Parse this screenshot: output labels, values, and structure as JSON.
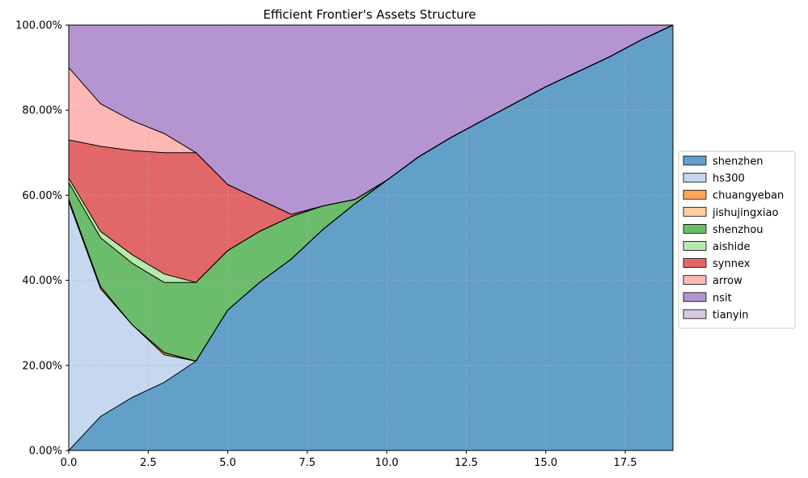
{
  "chart_data": {
    "type": "area",
    "stacked": true,
    "normalized": true,
    "title": "Efficient Frontier's Assets Structure",
    "xlabel": "",
    "ylabel": "",
    "xlim": [
      0,
      19
    ],
    "ylim": [
      0,
      1
    ],
    "x_ticks": [
      0,
      2.5,
      5,
      7.5,
      10,
      12.5,
      15,
      17.5
    ],
    "x_tick_labels": [
      "0.0",
      "2.5",
      "5.0",
      "7.5",
      "10.0",
      "12.5",
      "15.0",
      "17.5"
    ],
    "y_ticks": [
      0,
      0.2,
      0.4,
      0.6,
      0.8,
      1.0
    ],
    "y_tick_labels": [
      "0.00%",
      "20.00%",
      "40.00%",
      "60.00%",
      "80.00%",
      "100.00%"
    ],
    "grid": true,
    "legend_position": "right",
    "x": [
      0,
      1,
      2,
      3,
      4,
      5,
      6,
      7,
      8,
      9,
      10,
      11,
      12,
      13,
      14,
      15,
      16,
      17,
      18,
      19
    ],
    "series": [
      {
        "name": "shenzhen",
        "color": "#1f77b4",
        "values": [
          0.0,
          0.08,
          0.125,
          0.16,
          0.21,
          0.33,
          0.395,
          0.45,
          0.52,
          0.58,
          0.635,
          0.69,
          0.735,
          0.775,
          0.815,
          0.855,
          0.89,
          0.925,
          0.965,
          1.0
        ]
      },
      {
        "name": "hs300",
        "color": "#aec7e8",
        "values": [
          0.585,
          0.3,
          0.17,
          0.065,
          0.0,
          0.0,
          0.0,
          0.0,
          0.0,
          0.0,
          0.0,
          0.0,
          0.0,
          0.0,
          0.0,
          0.0,
          0.0,
          0.0,
          0.0,
          0.0
        ]
      },
      {
        "name": "chuangyeban",
        "color": "#ff7f0e",
        "values": [
          0.005,
          0.005,
          0.0,
          0.005,
          0.0,
          0.0,
          0.0,
          0.0,
          0.0,
          0.0,
          0.0,
          0.0,
          0.0,
          0.0,
          0.0,
          0.0,
          0.0,
          0.0,
          0.0,
          0.0
        ]
      },
      {
        "name": "jishujingxiao",
        "color": "#ffbb78",
        "values": [
          0.0,
          0.0,
          0.0,
          0.0,
          0.0,
          0.0,
          0.0,
          0.0,
          0.0,
          0.0,
          0.0,
          0.0,
          0.0,
          0.0,
          0.0,
          0.0,
          0.0,
          0.0,
          0.0,
          0.0
        ]
      },
      {
        "name": "shenzhou",
        "color": "#2ca02c",
        "values": [
          0.04,
          0.115,
          0.145,
          0.165,
          0.185,
          0.14,
          0.12,
          0.1,
          0.055,
          0.01,
          0.0,
          0.0,
          0.0,
          0.0,
          0.0,
          0.0,
          0.0,
          0.0,
          0.0,
          0.0
        ]
      },
      {
        "name": "aishide",
        "color": "#98df8a",
        "values": [
          0.01,
          0.015,
          0.02,
          0.02,
          0.0,
          0.0,
          0.0,
          0.0,
          0.0,
          0.0,
          0.0,
          0.0,
          0.0,
          0.0,
          0.0,
          0.0,
          0.0,
          0.0,
          0.0,
          0.0
        ]
      },
      {
        "name": "synnex",
        "color": "#d62728",
        "values": [
          0.09,
          0.2,
          0.245,
          0.285,
          0.305,
          0.155,
          0.075,
          0.005,
          0.0,
          0.0,
          0.0,
          0.0,
          0.0,
          0.0,
          0.0,
          0.0,
          0.0,
          0.0,
          0.0,
          0.0
        ]
      },
      {
        "name": "arrow",
        "color": "#ff9896",
        "values": [
          0.17,
          0.1,
          0.07,
          0.045,
          0.0,
          0.0,
          0.0,
          0.0,
          0.0,
          0.0,
          0.0,
          0.0,
          0.0,
          0.0,
          0.0,
          0.0,
          0.0,
          0.0,
          0.0,
          0.0
        ]
      },
      {
        "name": "nsit",
        "color": "#9467bd",
        "values": [
          0.1,
          0.185,
          0.225,
          0.255,
          0.3,
          0.375,
          0.41,
          0.445,
          0.425,
          0.41,
          0.365,
          0.31,
          0.265,
          0.225,
          0.185,
          0.145,
          0.11,
          0.075,
          0.035,
          0.0
        ]
      },
      {
        "name": "tianyin",
        "color": "#c5b0d5",
        "values": [
          0.0,
          0.0,
          0.0,
          0.0,
          0.0,
          0.0,
          0.0,
          0.0,
          0.0,
          0.0,
          0.0,
          0.0,
          0.0,
          0.0,
          0.0,
          0.0,
          0.0,
          0.0,
          0.0,
          0.0
        ]
      }
    ]
  }
}
